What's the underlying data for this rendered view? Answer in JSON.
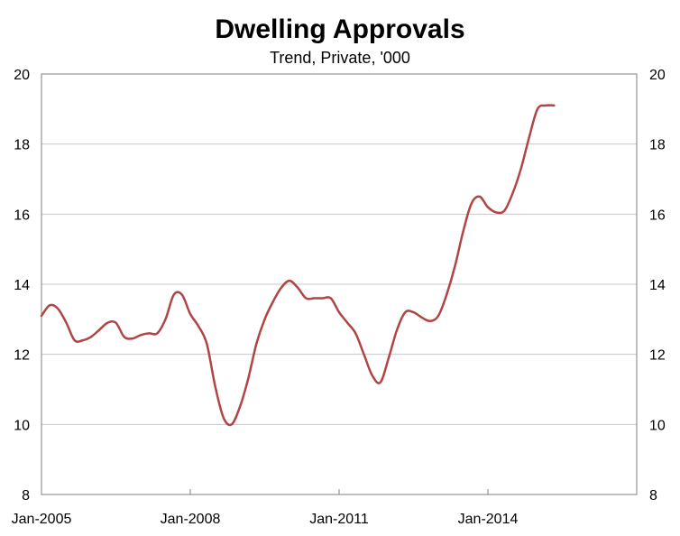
{
  "chart_data": {
    "type": "line",
    "title": "Dwelling Approvals",
    "subtitle": "Trend, Private, '000",
    "xlabel": "",
    "ylabel": "",
    "ylim": [
      8,
      20
    ],
    "y_ticks": [
      "20",
      "18",
      "16",
      "14",
      "12",
      "10",
      "8"
    ],
    "y_tick_values": [
      20,
      18,
      16,
      14,
      12,
      10,
      8
    ],
    "x_ticks": [
      "Jan-2005",
      "Jan-2008",
      "Jan-2011",
      "Jan-2014"
    ],
    "x_tick_values": [
      "2005-01",
      "2008-01",
      "2011-01",
      "2014-01"
    ],
    "xlim": [
      "2005-01",
      "2017-01"
    ],
    "grid": true,
    "line_color": "#b04545",
    "series": [
      {
        "x": [
          "2005-01",
          "2005-03",
          "2005-05",
          "2005-07",
          "2005-09",
          "2005-11",
          "2006-01",
          "2006-03",
          "2006-05",
          "2006-07",
          "2006-09",
          "2006-11",
          "2007-01",
          "2007-03",
          "2007-05",
          "2007-07",
          "2007-09",
          "2007-11",
          "2008-01",
          "2008-03",
          "2008-05",
          "2008-07",
          "2008-09",
          "2008-11",
          "2009-01",
          "2009-03",
          "2009-05",
          "2009-07",
          "2009-09",
          "2009-11",
          "2010-01",
          "2010-03",
          "2010-05",
          "2010-07",
          "2010-09",
          "2010-11",
          "2011-01",
          "2011-03",
          "2011-05",
          "2011-07",
          "2011-09",
          "2011-11",
          "2012-01",
          "2012-03",
          "2012-05",
          "2012-07",
          "2012-09",
          "2012-11",
          "2013-01",
          "2013-03",
          "2013-05",
          "2013-07",
          "2013-09",
          "2013-11",
          "2014-01",
          "2014-03",
          "2014-05",
          "2014-07",
          "2014-09",
          "2014-11",
          "2015-01",
          "2015-03",
          "2015-05"
        ],
        "values": [
          13.1,
          13.4,
          13.3,
          12.9,
          12.4,
          12.4,
          12.5,
          12.7,
          12.9,
          12.9,
          12.5,
          12.45,
          12.55,
          12.6,
          12.6,
          13.0,
          13.7,
          13.7,
          13.15,
          12.8,
          12.3,
          11.1,
          10.2,
          10.0,
          10.5,
          11.3,
          12.3,
          13.0,
          13.5,
          13.9,
          14.1,
          13.9,
          13.6,
          13.6,
          13.6,
          13.6,
          13.2,
          12.9,
          12.6,
          12.0,
          11.4,
          11.2,
          11.9,
          12.7,
          13.2,
          13.2,
          13.05,
          12.95,
          13.1,
          13.7,
          14.5,
          15.5,
          16.3,
          16.5,
          16.2,
          16.05,
          16.1,
          16.6,
          17.3,
          18.2,
          19.0,
          19.1,
          19.1
        ]
      }
    ]
  }
}
